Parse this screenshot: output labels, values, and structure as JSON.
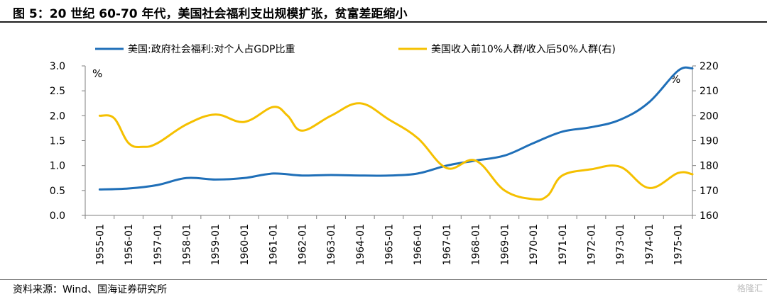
{
  "header": {
    "title": "图 5：20 世纪 60-70 年代，美国社会福利支出规模扩张，贫富差距缩小"
  },
  "footer": {
    "source": "资料来源：Wind、国海证券研究所",
    "watermark": "格隆汇"
  },
  "colors": {
    "blue": "#1f6fb8",
    "yellow": "#f5c000"
  },
  "chart_data": {
    "type": "line",
    "categories": [
      "1955-01",
      "1956-01",
      "1957-01",
      "1958-01",
      "1959-01",
      "1960-01",
      "1961-01",
      "1962-01",
      "1963-01",
      "1964-01",
      "1965-01",
      "1966-01",
      "1967-01",
      "1968-01",
      "1969-01",
      "1970-01",
      "1971-01",
      "1972-01",
      "1973-01",
      "1974-01",
      "1975-01"
    ],
    "left_axis": {
      "ylim": [
        0,
        3.0
      ],
      "ticks": [
        "0.0",
        "0.5",
        "1.0",
        "1.5",
        "2.0",
        "2.5",
        "3.0"
      ],
      "unit": "%"
    },
    "right_axis": {
      "ylim": [
        160,
        220
      ],
      "ticks": [
        "160",
        "170",
        "180",
        "190",
        "200",
        "210",
        "220"
      ],
      "unit": "%"
    },
    "series": [
      {
        "name": "美国:政府社会福利:对个人占GDP比重",
        "axis": "left",
        "color": "#1f6fb8",
        "x": [
          0,
          1,
          2,
          3,
          4,
          5,
          6,
          7,
          8,
          9,
          10,
          11,
          12,
          13,
          14,
          15,
          16,
          17,
          18,
          19,
          20,
          20.5
        ],
        "values": [
          0.52,
          0.54,
          0.61,
          0.75,
          0.72,
          0.75,
          0.84,
          0.8,
          0.81,
          0.8,
          0.8,
          0.84,
          1.0,
          1.1,
          1.2,
          1.45,
          1.68,
          1.77,
          1.92,
          2.27,
          2.9,
          2.95
        ]
      },
      {
        "name": "美国收入前10%人群/收入后50%人群(右)",
        "axis": "right",
        "color": "#f5c000",
        "x": [
          0,
          0.5,
          1,
          1.5,
          2,
          3,
          4,
          5,
          6,
          6.5,
          7,
          8,
          9,
          10,
          11,
          12,
          13,
          14,
          15,
          15.5,
          16,
          17,
          18,
          19,
          20,
          20.5
        ],
        "values": [
          200,
          199,
          189,
          187.5,
          189,
          196.5,
          200.5,
          197.5,
          203.5,
          200,
          194,
          200,
          205,
          198.5,
          191,
          179,
          182,
          170,
          166.5,
          168,
          176,
          178.5,
          179.5,
          171,
          177,
          176.5
        ]
      }
    ]
  }
}
